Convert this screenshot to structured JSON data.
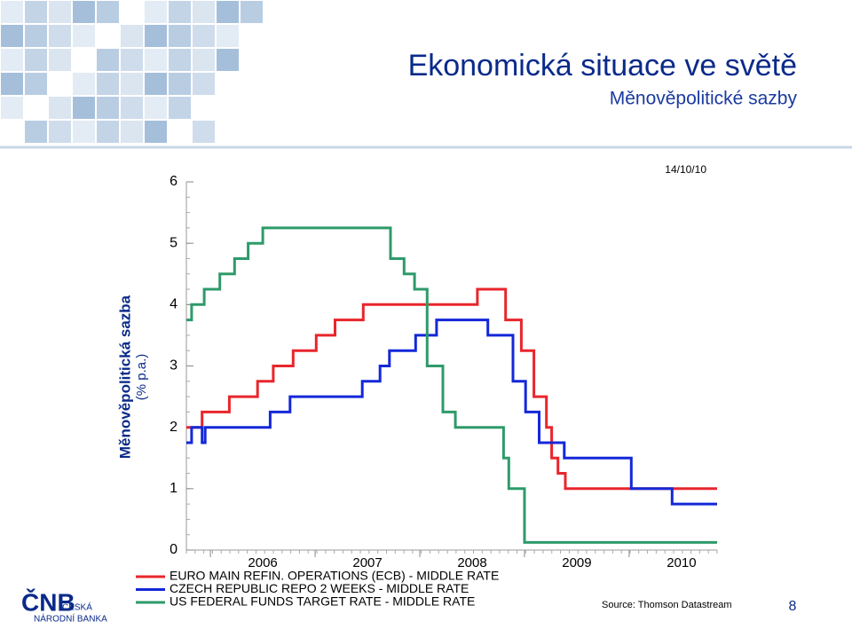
{
  "header": {
    "title": "Ekonomická situace ve světě",
    "subtitle": "Měnověpolitické sazby"
  },
  "logo": {
    "abbr": "ČNB",
    "line1": "ČESKÁ",
    "line2": "NÁRODNÍ BANKA"
  },
  "page_number": "8",
  "chart_data": {
    "type": "line",
    "step": true,
    "date": "14/10/10",
    "ylabel": "Měnověpolitická sazba",
    "yunit": "(% p.a.)",
    "source": "Source: Thomson Datastream",
    "xlim": [
      2005.77,
      2010.84
    ],
    "xticks": [
      2006,
      2007,
      2008,
      2009,
      2010
    ],
    "ylim": [
      0,
      6
    ],
    "yticks": [
      0,
      1,
      2,
      3,
      4,
      5,
      6
    ],
    "series": [
      {
        "name": "EURO MAIN REFIN. OPERATIONS (ECB) - MIDDLE RATE",
        "color": "#e8262b",
        "x": [
          2005.77,
          2005.92,
          2006.18,
          2006.45,
          2006.6,
          2006.79,
          2007.01,
          2007.19,
          2007.46,
          2008.55,
          2008.82,
          2008.97,
          2009.09,
          2009.21,
          2009.26,
          2009.32,
          2009.39
        ],
        "values": [
          2.0,
          2.25,
          2.5,
          2.75,
          3.0,
          3.25,
          3.5,
          3.75,
          4.0,
          4.25,
          3.75,
          3.25,
          2.5,
          2.0,
          1.5,
          1.25,
          1.0
        ]
      },
      {
        "name": "CZECH REPUBLIC REPO 2 WEEKS - MIDDLE RATE",
        "color": "#1428d8",
        "x": [
          2005.77,
          2005.82,
          2005.92,
          2005.95,
          2006.57,
          2006.76,
          2007.45,
          2007.62,
          2007.71,
          2007.96,
          2008.16,
          2008.65,
          2008.89,
          2009.01,
          2009.14,
          2009.38,
          2010.02,
          2010.41
        ],
        "values": [
          1.75,
          2.0,
          1.75,
          2.0,
          2.25,
          2.5,
          2.75,
          3.0,
          3.25,
          3.5,
          3.75,
          3.5,
          2.75,
          2.25,
          1.75,
          1.5,
          1.0,
          0.75
        ]
      },
      {
        "name": "US FEDERAL FUNDS TARGET RATE - MIDDLE RATE",
        "color": "#2e9a6a",
        "x": [
          2005.77,
          2005.82,
          2005.94,
          2006.09,
          2006.23,
          2006.36,
          2006.5,
          2007.72,
          2007.85,
          2007.95,
          2008.07,
          2008.22,
          2008.34,
          2008.8,
          2008.85,
          2009.0
        ],
        "values": [
          3.75,
          4.0,
          4.25,
          4.5,
          4.75,
          5.0,
          5.25,
          4.75,
          4.5,
          4.25,
          3.0,
          2.25,
          2.0,
          1.5,
          1.0,
          0.125
        ]
      }
    ]
  }
}
